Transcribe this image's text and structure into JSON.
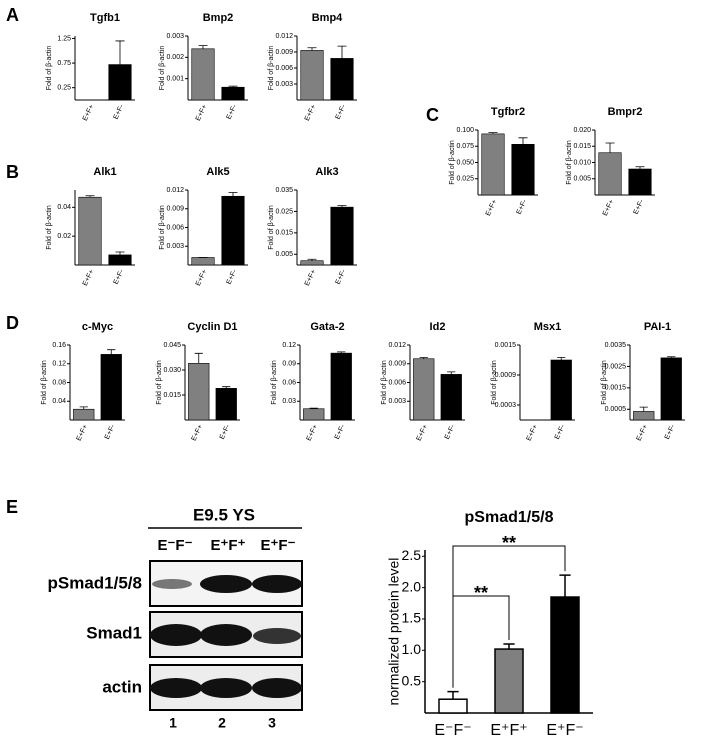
{
  "panels": [
    "A",
    "B",
    "C",
    "D",
    "E"
  ],
  "blot": {
    "title": "E9.5 YS",
    "lanes": [
      "E⁻F⁻",
      "E⁺F⁺",
      "E⁺F⁻"
    ],
    "rows": [
      "pSmad1/5/8",
      "Smad1",
      "actin"
    ],
    "lane_numbers": [
      "1",
      "2",
      "3"
    ]
  },
  "chart_data": [
    {
      "type": "bar",
      "title": "Tgfb1",
      "y_label": "Fold of β-actin",
      "categories": [
        "E+F+",
        "E+F-"
      ],
      "values": [
        0,
        0.72
      ],
      "errors": [
        0,
        0.48
      ],
      "colors": [
        "#808080",
        "#000000"
      ],
      "ylim": [
        0,
        1.3
      ],
      "yticks": [
        0.25,
        0.75,
        1.25
      ]
    },
    {
      "type": "bar",
      "title": "Bmp2",
      "y_label": "Fold of β-actin",
      "categories": [
        "E+F+",
        "E+F-"
      ],
      "values": [
        0.0024,
        0.0006
      ],
      "errors": [
        0.00015,
        5e-05
      ],
      "colors": [
        "#808080",
        "#000000"
      ],
      "ylim": [
        0,
        0.003
      ],
      "yticks": [
        0.001,
        0.002,
        0.003
      ]
    },
    {
      "type": "bar",
      "title": "Bmp4",
      "y_label": "Fold of β-actin",
      "categories": [
        "E+F+",
        "E+F-"
      ],
      "values": [
        0.0093,
        0.0078
      ],
      "errors": [
        0.0005,
        0.0023
      ],
      "colors": [
        "#808080",
        "#000000"
      ],
      "ylim": [
        0,
        0.012
      ],
      "yticks": [
        0.003,
        0.006,
        0.009,
        0.012
      ]
    },
    {
      "type": "bar",
      "title": "Alk1",
      "y_label": "Fold of β-actin",
      "categories": [
        "E+F+",
        "E+F-"
      ],
      "values": [
        0.047,
        0.007
      ],
      "errors": [
        0.001,
        0.002
      ],
      "colors": [
        "#808080",
        "#000000"
      ],
      "ylim": [
        0,
        0.052
      ],
      "yticks": [
        0.02,
        0.04
      ]
    },
    {
      "type": "bar",
      "title": "Alk5",
      "y_label": "Fold of β-actin",
      "categories": [
        "E+F+",
        "E+F-"
      ],
      "values": [
        0.0012,
        0.011
      ],
      "errors": [
        0,
        0.0006
      ],
      "colors": [
        "#808080",
        "#000000"
      ],
      "ylim": [
        0,
        0.012
      ],
      "yticks": [
        0.003,
        0.006,
        0.009,
        0.012
      ]
    },
    {
      "type": "bar",
      "title": "Alk3",
      "y_label": "Fold of β-actin",
      "categories": [
        "E+F+",
        "E+F-"
      ],
      "values": [
        0.002,
        0.027
      ],
      "errors": [
        0.0007,
        0.0007
      ],
      "colors": [
        "#808080",
        "#000000"
      ],
      "ylim": [
        0,
        0.035
      ],
      "yticks": [
        0.005,
        0.015,
        0.025,
        0.035
      ]
    },
    {
      "type": "bar",
      "title": "Tgfbr2",
      "y_label": "Fold of β-actin",
      "categories": [
        "E+F+",
        "E+F-"
      ],
      "values": [
        0.094,
        0.078
      ],
      "errors": [
        0.002,
        0.01
      ],
      "colors": [
        "#808080",
        "#000000"
      ],
      "ylim": [
        0,
        0.1
      ],
      "yticks": [
        0.025,
        {
          "value": 0.05,
          "label": "0.050"
        },
        0.075,
        {
          "value": 0.1,
          "label": "0.100"
        }
      ]
    },
    {
      "type": "bar",
      "title": "Bmpr2",
      "y_label": "Fold of β-actin",
      "categories": [
        "E+F+",
        "E+F-"
      ],
      "values": [
        0.013,
        0.008
      ],
      "errors": [
        0.003,
        0.0007
      ],
      "colors": [
        "#808080",
        "#000000"
      ],
      "ylim": [
        0,
        0.02
      ],
      "yticks": [
        0.005,
        {
          "value": 0.01,
          "label": "0.010"
        },
        0.015,
        {
          "value": 0.02,
          "label": "0.020"
        }
      ]
    },
    {
      "type": "bar",
      "title": "c-Myc",
      "y_label": "Fold of β-actin",
      "categories": [
        "E+F+",
        "E+F-"
      ],
      "values": [
        0.023,
        0.14
      ],
      "errors": [
        0.005,
        0.01
      ],
      "colors": [
        "#808080",
        "#000000"
      ],
      "ylim": [
        0,
        0.16
      ],
      "yticks": [
        0.04,
        0.08,
        0.12,
        0.16
      ]
    },
    {
      "type": "bar",
      "title": "Cyclin D1",
      "y_label": "Fold of β-actin",
      "categories": [
        "E+F+",
        "E+F-"
      ],
      "values": [
        0.034,
        0.019
      ],
      "errors": [
        0.006,
        0.001
      ],
      "colors": [
        "#808080",
        "#000000"
      ],
      "ylim": [
        0,
        0.045
      ],
      "yticks": [
        0.015,
        {
          "value": 0.03,
          "label": "0.030"
        },
        0.045
      ]
    },
    {
      "type": "bar",
      "title": "Gata-2",
      "y_label": "Fold of β-actin",
      "categories": [
        "E+F+",
        "E+F-"
      ],
      "values": [
        0.018,
        0.107
      ],
      "errors": [
        0.001,
        0.002
      ],
      "colors": [
        "#808080",
        "#000000"
      ],
      "ylim": [
        0,
        0.12
      ],
      "yticks": [
        0.03,
        0.06,
        0.09,
        0.12
      ]
    },
    {
      "type": "bar",
      "title": "Id2",
      "y_label": "Fold of β-actin",
      "categories": [
        "E+F+",
        "E+F-"
      ],
      "values": [
        0.0098,
        0.0073
      ],
      "errors": [
        0.0002,
        0.0004
      ],
      "colors": [
        "#808080",
        "#000000"
      ],
      "ylim": [
        0,
        0.012
      ],
      "yticks": [
        0.003,
        0.006,
        0.009,
        0.012
      ]
    },
    {
      "type": "bar",
      "title": "Msx1",
      "y_label": "Fold of β-actin",
      "categories": [
        "E+F+",
        "E+F-"
      ],
      "values": [
        0,
        0.0012
      ],
      "errors": [
        0,
        5e-05
      ],
      "colors": [
        "#808080",
        "#000000"
      ],
      "ylim": [
        0,
        0.0015
      ],
      "yticks": [
        0.0003,
        0.0009,
        0.0015
      ]
    },
    {
      "type": "bar",
      "title": "PAI-1",
      "y_label": "Fold of β-actin",
      "categories": [
        "E+F+",
        "E+F-"
      ],
      "values": [
        0.0004,
        0.0029
      ],
      "errors": [
        0.0002,
        5e-05
      ],
      "colors": [
        "#808080",
        "#000000"
      ],
      "ylim": [
        0,
        0.0035
      ],
      "yticks": [
        0.0005,
        0.0015,
        0.0025,
        0.0035
      ]
    },
    {
      "type": "bar",
      "title": "pSmad1/5/8",
      "y_label": "normalized protein level",
      "categories": [
        "E⁻F⁻",
        "E⁺F⁺",
        "E⁺F⁻"
      ],
      "values": [
        0.22,
        1.02,
        1.85
      ],
      "errors": [
        0.12,
        0.08,
        0.35
      ],
      "colors": [
        "#ffffff",
        "#808080",
        "#000000"
      ],
      "ylim": [
        0,
        2.6
      ],
      "yticks": [
        0.5,
        {
          "value": 1,
          "label": "1.0"
        },
        1.5,
        {
          "value": 2,
          "label": "2.0"
        },
        2.5
      ],
      "annotations": [
        "**",
        "**"
      ]
    }
  ]
}
